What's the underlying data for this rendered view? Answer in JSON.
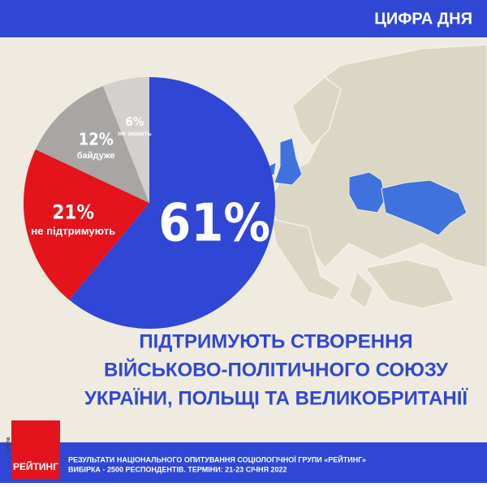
{
  "header": {
    "title": "ЦИФРА ДНЯ"
  },
  "chart_data": {
    "type": "pie",
    "title": [
      "ПІДТРИМУЮТЬ СТВОРЕННЯ",
      "ВІЙСЬКОВО-ПОЛІТИЧНОГО СОЮЗУ",
      "УКРАЇНИ, ПОЛЬЩІ ТА ВЕЛИКОБРИТАНІЇ"
    ],
    "categories": [
      null,
      "не підтримують",
      "байдуже",
      "не знають"
    ],
    "values": [
      61,
      21,
      12,
      6
    ],
    "value_labels": [
      "61%",
      "21%",
      "12%",
      "6%"
    ],
    "colors": [
      "#2f47d4",
      "#e3141c",
      "#a8a5a5",
      "#d3d1ce"
    ]
  },
  "footer": {
    "logo": "РЕЙТИНГ",
    "logo_tag": "група",
    "lines": [
      "РЕЗУЛЬТАТИ НАЦІОНАЛЬНОГО ОПИТУВАННЯ СОЦІОЛОГІЧНОЇ ГРУПИ «РЕЙТИНГ»",
      "ВИБІРКА - 2500 РЕСПОНДЕНТІВ. ТЕРМІНИ: 21-23 СІЧНЯ 2022"
    ]
  }
}
